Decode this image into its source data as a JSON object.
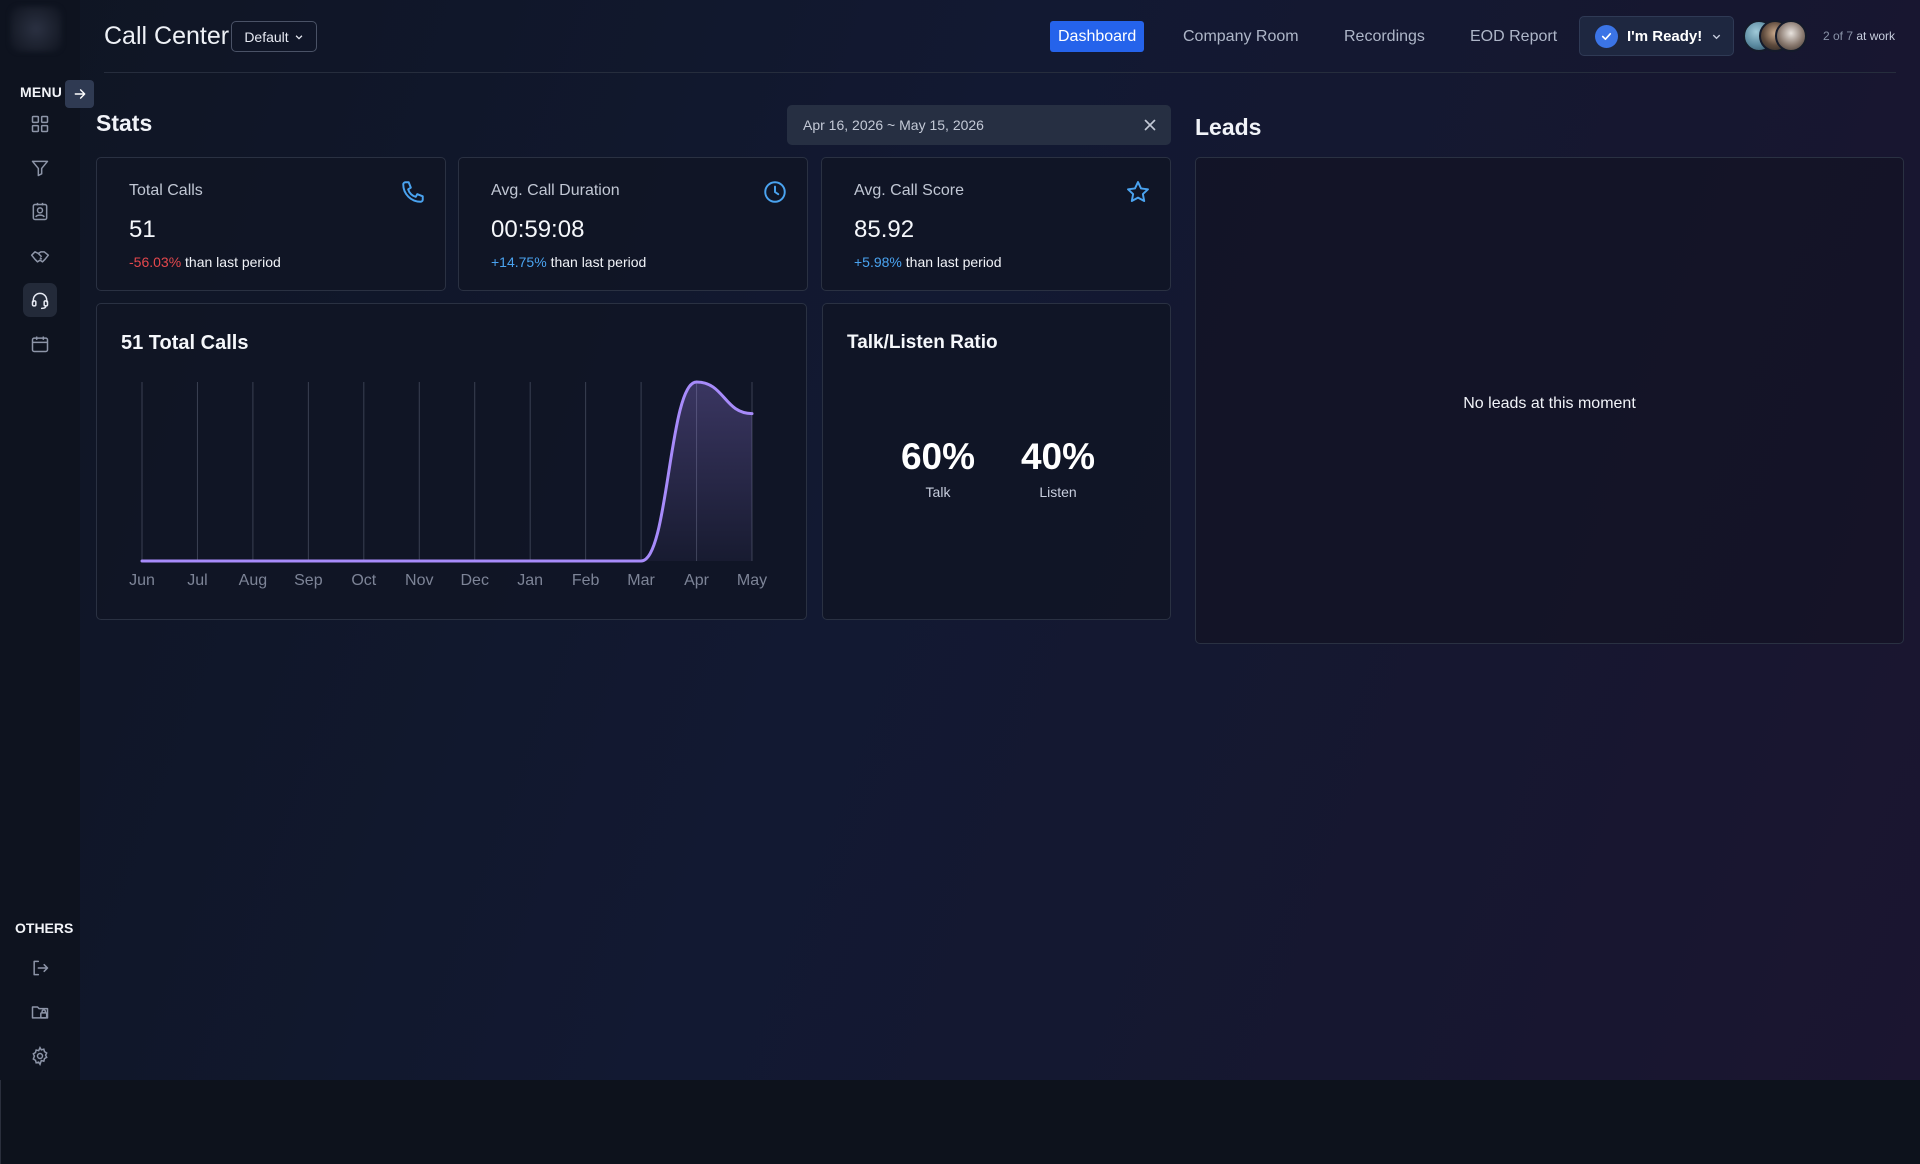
{
  "sidebar": {
    "menu_label": "MENU",
    "others_label": "OTHERS",
    "items": [
      {
        "icon": "grid-icon"
      },
      {
        "icon": "filter-icon"
      },
      {
        "icon": "contact-book-icon"
      },
      {
        "icon": "handshake-icon"
      },
      {
        "icon": "headset-icon",
        "active": true
      },
      {
        "icon": "calendar-icon"
      }
    ],
    "other_items": [
      {
        "icon": "logout-icon"
      },
      {
        "icon": "folder-lock-icon"
      },
      {
        "icon": "gear-icon"
      }
    ]
  },
  "header": {
    "title": "Call Center",
    "view_select": "Default",
    "nav": [
      "Dashboard",
      "Company Room",
      "Recordings",
      "EOD Report"
    ],
    "active_nav": "Dashboard",
    "ready_label": "I'm Ready!",
    "presence_count": "2 of 7",
    "presence_suffix": "at work"
  },
  "stats": {
    "title": "Stats",
    "date_range": "Apr 16, 2026 ~ May 15, 2026",
    "cards": [
      {
        "label": "Total Calls",
        "value": "51",
        "change": "-56.03%",
        "change_suffix": "than last period",
        "icon": "phone-icon"
      },
      {
        "label": "Avg. Call Duration",
        "value": "00:59:08",
        "change": "+14.75%",
        "change_suffix": "than last period",
        "icon": "clock-icon"
      },
      {
        "label": "Avg. Call Score",
        "value": "85.92",
        "change": "+5.98%",
        "change_suffix": "than last period",
        "icon": "star-icon"
      }
    ]
  },
  "calls_chart": {
    "title": "51 Total Calls"
  },
  "chart_data": {
    "type": "area",
    "title": "51 Total Calls",
    "categories": [
      "Jun",
      "Jul",
      "Aug",
      "Sep",
      "Oct",
      "Nov",
      "Dec",
      "Jan",
      "Feb",
      "Mar",
      "Apr",
      "May"
    ],
    "values": [
      0,
      0,
      0,
      0,
      0,
      0,
      0,
      0,
      0,
      0,
      51,
      42
    ],
    "ylim": [
      0,
      51
    ],
    "grid": "vertical",
    "color": "#a78bfa"
  },
  "talk_listen": {
    "title": "Talk/Listen Ratio",
    "talk_value": "60%",
    "talk_label": "Talk",
    "listen_value": "40%",
    "listen_label": "Listen"
  },
  "leads": {
    "title": "Leads",
    "empty_message": "No leads at this moment"
  },
  "colors": {
    "accent": "#2563eb",
    "negative": "#e5484d",
    "positive": "#4aa3f0",
    "chart_line": "#a78bfa"
  }
}
